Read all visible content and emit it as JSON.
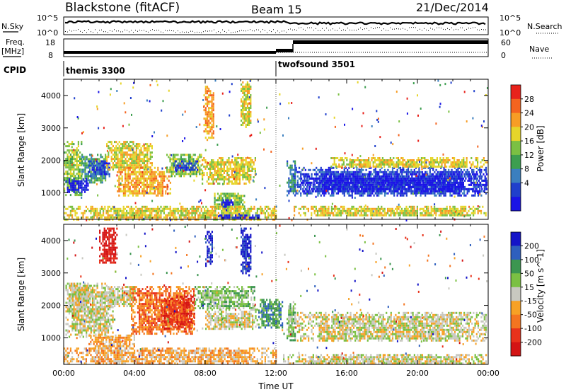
{
  "header": {
    "radar": "Blackstone (fitACF)",
    "beam": "Beam 15",
    "date": "21/Dec/2014"
  },
  "noise_panel": {
    "left_label": "N.Sky",
    "right_label": "N.Search",
    "left_ticks": [
      "10^5",
      "10^0"
    ],
    "right_ticks": [
      "10^5",
      "10^0"
    ]
  },
  "freq_panel": {
    "left_label_1": "Freq.",
    "left_label_2": "[MHz]",
    "right_label": "Nave",
    "left_ticks": [
      "18",
      "8"
    ],
    "right_ticks": [
      "60",
      "0"
    ]
  },
  "cpid_panel": {
    "label": "CPID",
    "segments": [
      {
        "name": "themis 3300",
        "start_hour": 0
      },
      {
        "name": "twofsound 3501",
        "start_hour": 12
      }
    ]
  },
  "chart_data": [
    {
      "type": "heatmap",
      "quantity": "Power",
      "ylabel": "Slant Range [km]",
      "colorbar_label": "Power [dB]",
      "colorbar_ticks": [
        "28",
        "24",
        "20",
        "16",
        "12",
        "8",
        "4"
      ],
      "colorbar_colors": [
        "#e8221b",
        "#f4641f",
        "#f79d25",
        "#e6d52a",
        "#7bc043",
        "#3d9e4f",
        "#3b7fbf",
        "#2040cc",
        "#1a14e6"
      ],
      "y_ticks": [
        "4000",
        "3000",
        "2000",
        "1000"
      ],
      "ylim": [
        180,
        4500
      ],
      "xlim": [
        0,
        24
      ],
      "echo_regions": [
        {
          "x0": 0,
          "x1": 1.0,
          "y0": 900,
          "y1": 2600,
          "level": 4
        },
        {
          "x0": 1.0,
          "x1": 2.4,
          "y0": 1300,
          "y1": 2200,
          "level": 5
        },
        {
          "x0": 0.1,
          "x1": 1.4,
          "y0": 1050,
          "y1": 1450,
          "level": 8
        },
        {
          "x0": 1.4,
          "x1": 2.6,
          "y0": 1500,
          "y1": 2000,
          "level": 7
        },
        {
          "x0": 2.4,
          "x1": 5.0,
          "y0": 1700,
          "y1": 2600,
          "level": 3
        },
        {
          "x0": 3.0,
          "x1": 6.0,
          "y0": 900,
          "y1": 1800,
          "level": 2
        },
        {
          "x0": 5.8,
          "x1": 7.8,
          "y0": 1500,
          "y1": 2200,
          "level": 4
        },
        {
          "x0": 6.2,
          "x1": 7.6,
          "y0": 1700,
          "y1": 2000,
          "level": 7
        },
        {
          "x0": 7.8,
          "x1": 10.8,
          "y0": 1300,
          "y1": 2100,
          "level": 3
        },
        {
          "x0": 8.5,
          "x1": 10.2,
          "y0": 500,
          "y1": 1000,
          "level": 4
        },
        {
          "x0": 8.9,
          "x1": 9.6,
          "y0": 550,
          "y1": 800,
          "level": 8
        },
        {
          "x0": 10.0,
          "x1": 10.6,
          "y0": 3000,
          "y1": 4500,
          "level": 3
        },
        {
          "x0": 7.9,
          "x1": 8.5,
          "y0": 2600,
          "y1": 4300,
          "level": 2
        },
        {
          "x0": 0,
          "x1": 12.0,
          "y0": 180,
          "y1": 600,
          "level": 3
        },
        {
          "x0": 8.8,
          "x1": 11.0,
          "y0": 200,
          "y1": 330,
          "level": 8
        },
        {
          "x0": 12.6,
          "x1": 13.1,
          "y0": 900,
          "y1": 2000,
          "level": 6
        },
        {
          "x0": 13.1,
          "x1": 23.9,
          "y0": 900,
          "y1": 1800,
          "level": 7
        },
        {
          "x0": 13.4,
          "x1": 23.9,
          "y0": 1050,
          "y1": 1600,
          "level": 8
        },
        {
          "x0": 15.0,
          "x1": 23.9,
          "y0": 1800,
          "y1": 2100,
          "level": 3
        },
        {
          "x0": 13.0,
          "x1": 23.9,
          "y0": 300,
          "y1": 600,
          "level": 3
        }
      ]
    },
    {
      "type": "heatmap",
      "quantity": "Velocity",
      "ylabel": "Slant Range [km]",
      "xlabel": "Time UT",
      "colorbar_label": "Velocity [m s^-1]",
      "colorbar_ticks": [
        "200",
        "100",
        "50",
        "15",
        "-15",
        "-50",
        "-100",
        "-200"
      ],
      "colorbar_colors": [
        "#1414c8",
        "#2e5fbe",
        "#3c9650",
        "#7bc043",
        "#c8c8c0",
        "#f7a125",
        "#f47520",
        "#e8321b",
        "#d41414"
      ],
      "y_ticks": [
        "4000",
        "3000",
        "2000",
        "1000"
      ],
      "x_ticks": [
        "00:00",
        "04:00",
        "08:00",
        "12:00",
        "16:00",
        "20:00",
        "00:00"
      ],
      "ylim": [
        180,
        4500
      ],
      "xlim": [
        0,
        24
      ],
      "echo_regions": [
        {
          "x0": 0.1,
          "x1": 2.8,
          "y0": 1000,
          "y1": 2700,
          "level": 4
        },
        {
          "x0": 0.3,
          "x1": 1.5,
          "y0": 2000,
          "y1": 2700,
          "level": 4
        },
        {
          "x0": 2.4,
          "x1": 4.0,
          "y0": 2000,
          "y1": 2600,
          "level": 4
        },
        {
          "x0": 3.8,
          "x1": 7.4,
          "y0": 1100,
          "y1": 2600,
          "level": 6
        },
        {
          "x0": 5.5,
          "x1": 7.4,
          "y0": 1300,
          "y1": 2300,
          "level": 7
        },
        {
          "x0": 7.4,
          "x1": 10.8,
          "y0": 1900,
          "y1": 2600,
          "level": 3
        },
        {
          "x0": 8.0,
          "x1": 11.0,
          "y0": 1300,
          "y1": 1900,
          "level": 4
        },
        {
          "x0": 11.0,
          "x1": 12.4,
          "y0": 1300,
          "y1": 2200,
          "level": 2
        },
        {
          "x0": 8.0,
          "x1": 8.4,
          "y0": 3200,
          "y1": 4300,
          "level": 0
        },
        {
          "x0": 10.0,
          "x1": 10.6,
          "y0": 2900,
          "y1": 4400,
          "level": 0
        },
        {
          "x0": 2.0,
          "x1": 3.0,
          "y0": 3300,
          "y1": 4400,
          "level": 8
        },
        {
          "x0": 0,
          "x1": 12.0,
          "y0": 180,
          "y1": 700,
          "level": 5
        },
        {
          "x0": 1.4,
          "x1": 4.0,
          "y0": 700,
          "y1": 1100,
          "level": 5
        },
        {
          "x0": 12.6,
          "x1": 13.1,
          "y0": 900,
          "y1": 2200,
          "level": 3
        },
        {
          "x0": 13.1,
          "x1": 23.9,
          "y0": 900,
          "y1": 1800,
          "level": 4
        },
        {
          "x0": 12.4,
          "x1": 23.9,
          "y0": 180,
          "y1": 500,
          "level": 4
        }
      ]
    }
  ]
}
